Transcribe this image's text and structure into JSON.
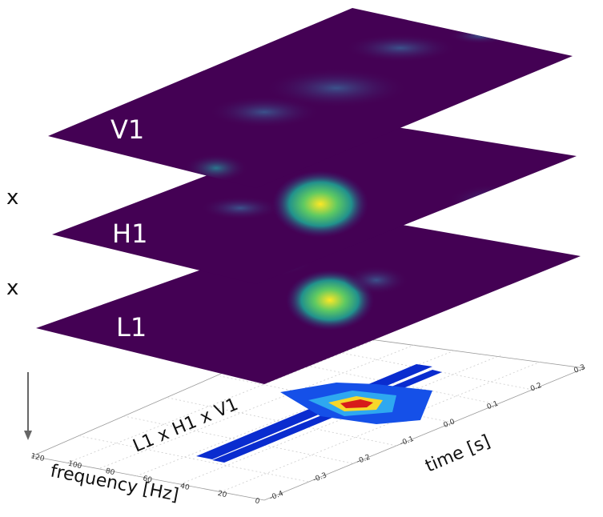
{
  "layers": [
    {
      "label": "V1"
    },
    {
      "label": "H1"
    },
    {
      "label": "L1"
    }
  ],
  "operators": [
    "x",
    "x"
  ],
  "result": {
    "label": "L1 x H1 x V1",
    "frequency_axis": {
      "label": "frequency [Hz]",
      "ticks": [
        "0",
        "20",
        "40",
        "60",
        "80",
        "100",
        "120"
      ]
    },
    "time_axis": {
      "label": "time [s]",
      "ticks": [
        "-0.4",
        "-0.3",
        "-0.2",
        "-0.1",
        "0.0",
        "0.1",
        "0.2",
        "0.3"
      ]
    }
  }
}
